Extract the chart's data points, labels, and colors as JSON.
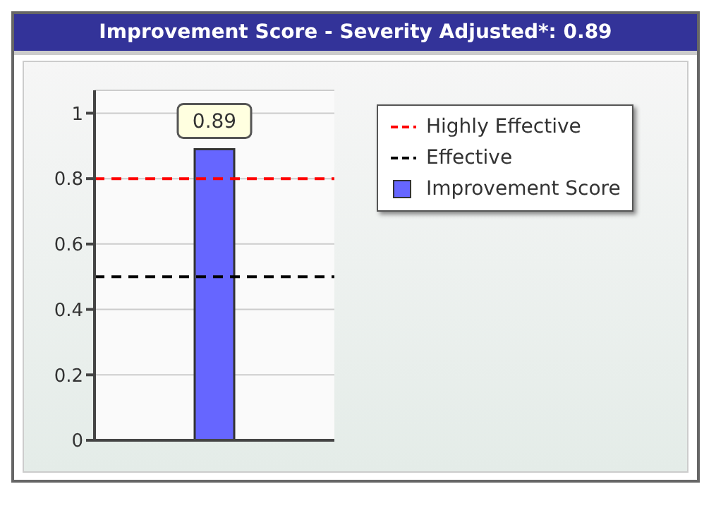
{
  "chart_data": {
    "type": "bar",
    "title": "Improvement Score - Severity Adjusted*: 0.89",
    "categories": [
      null
    ],
    "series": [
      {
        "name": "Improvement Score",
        "color": "#6666ff",
        "values": [
          0.89
        ]
      }
    ],
    "ylim": [
      0,
      1.07
    ],
    "yticks": [
      0,
      0.2,
      0.4,
      0.6,
      0.8,
      1
    ],
    "grid": "y",
    "data_labels": true,
    "legend": "right",
    "ref_lines": [
      {
        "axis": "y",
        "value": 0.8,
        "label": "Highly Effective",
        "color": "#ff0000",
        "line_style": "dashed"
      },
      {
        "axis": "y",
        "value": 0.5,
        "label": "Effective",
        "color": "#000000",
        "line_style": "dashed"
      }
    ]
  }
}
